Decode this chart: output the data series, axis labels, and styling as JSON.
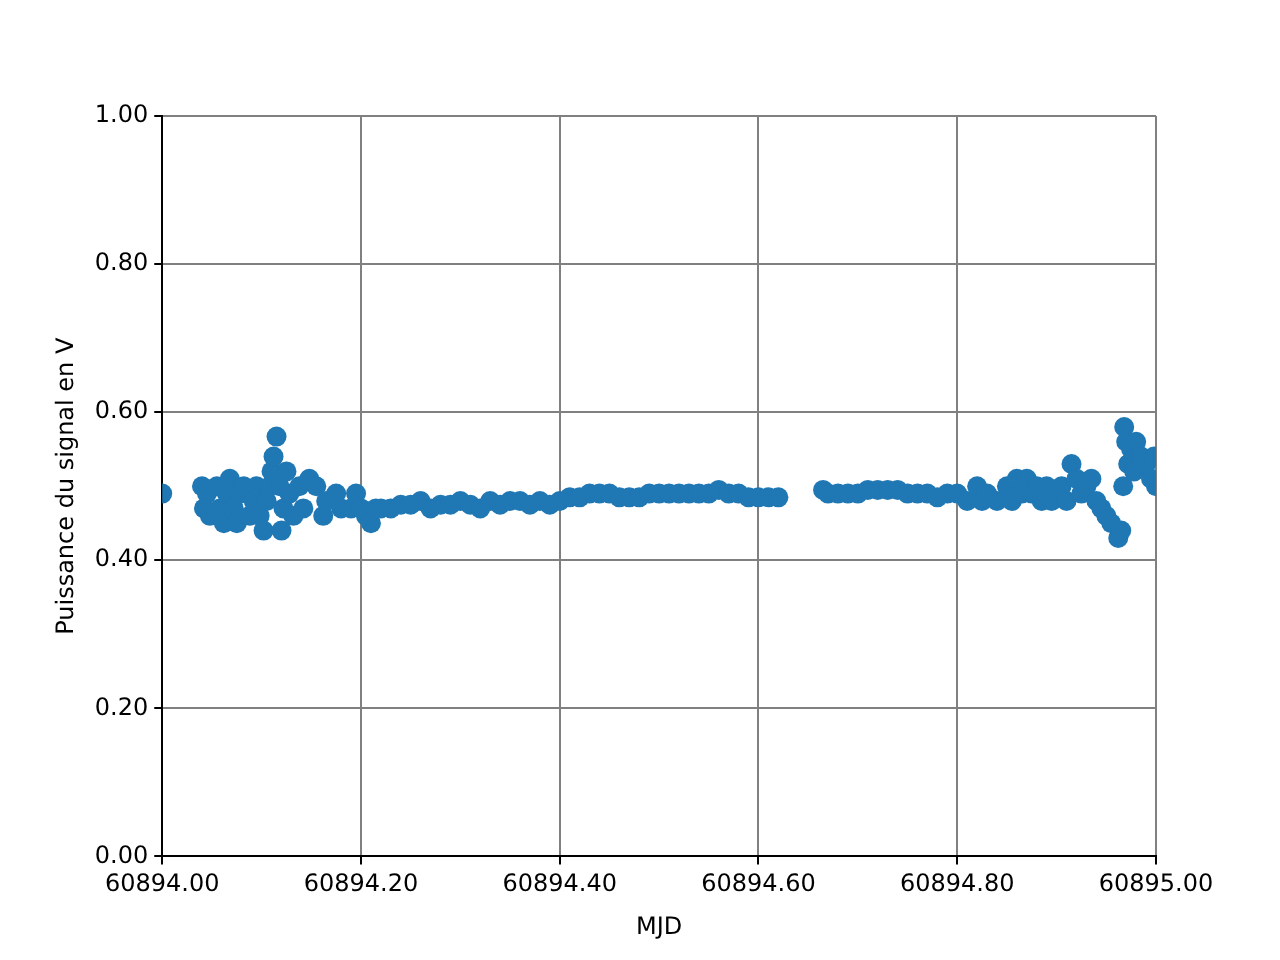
{
  "chart_data": {
    "type": "scatter",
    "xlabel": "MJD",
    "ylabel": "Puissance du signal en V",
    "marker": "circle",
    "grid": true,
    "xlim": [
      60894.0,
      60895.0
    ],
    "xticks": [
      {
        "value": 60894.0,
        "label": "60894.00"
      },
      {
        "value": 60894.2,
        "label": "60894.20"
      },
      {
        "value": 60894.4,
        "label": "60894.40"
      },
      {
        "value": 60894.6,
        "label": "60894.60"
      },
      {
        "value": 60894.8,
        "label": "60894.80"
      },
      {
        "value": 60895.0,
        "label": "60895.00"
      }
    ],
    "ylim": [
      0,
      1
    ],
    "yticks": [
      {
        "value": 0,
        "label": "0.00"
      },
      {
        "value": 0.2,
        "label": "0.20"
      },
      {
        "value": 0.4,
        "label": "0.40"
      },
      {
        "value": 0.6,
        "label": "0.60"
      },
      {
        "value": 0.8,
        "label": "0.80"
      },
      {
        "value": 1,
        "label": "1.00"
      }
    ],
    "series": [
      {
        "color": "#1f77b4",
        "x": [
          60894.0,
          60894.04,
          60894.042,
          60894.045,
          60894.048,
          60894.055,
          60894.058,
          60894.062,
          60894.065,
          60894.068,
          60894.072,
          60894.075,
          60894.078,
          60894.082,
          60894.088,
          60894.092,
          60894.095,
          60894.098,
          60894.102,
          60894.105,
          60894.108,
          60894.11,
          60894.112,
          60894.115,
          60894.118,
          60894.12,
          60894.122,
          60894.125,
          60894.128,
          60894.132,
          60894.138,
          60894.142,
          60894.148,
          60894.155,
          60894.162,
          60894.165,
          60894.175,
          60894.18,
          60894.19,
          60894.195,
          60894.2,
          60894.205,
          60894.21,
          60894.215,
          60894.22,
          60894.23,
          60894.24,
          60894.25,
          60894.26,
          60894.27,
          60894.28,
          60894.29,
          60894.3,
          60894.31,
          60894.32,
          60894.33,
          60894.34,
          60894.35,
          60894.36,
          60894.37,
          60894.38,
          60894.39,
          60894.4,
          60894.41,
          60894.42,
          60894.43,
          60894.44,
          60894.45,
          60894.46,
          60894.47,
          60894.48,
          60894.49,
          60894.5,
          60894.51,
          60894.52,
          60894.53,
          60894.54,
          60894.55,
          60894.56,
          60894.57,
          60894.58,
          60894.59,
          60894.6,
          60894.61,
          60894.62,
          60894.665,
          60894.67,
          60894.68,
          60894.69,
          60894.7,
          60894.71,
          60894.72,
          60894.73,
          60894.74,
          60894.75,
          60894.76,
          60894.77,
          60894.78,
          60894.79,
          60894.8,
          60894.81,
          60894.82,
          60894.825,
          60894.83,
          60894.84,
          60894.85,
          60894.855,
          60894.86,
          60894.865,
          60894.87,
          60894.875,
          60894.88,
          60894.885,
          60894.89,
          60894.895,
          60894.905,
          60894.91,
          60894.915,
          60894.92,
          60894.925,
          60894.93,
          60894.935,
          60894.94,
          60894.945,
          60894.95,
          60894.955,
          60894.962,
          60894.965,
          60894.967,
          60894.968,
          60894.97,
          60894.972,
          60894.975,
          60894.978,
          60894.98,
          60894.985,
          60894.99,
          60894.995,
          60894.998,
          60895.0
        ],
        "values": [
          0.49,
          0.5,
          0.47,
          0.49,
          0.46,
          0.5,
          0.47,
          0.45,
          0.49,
          0.51,
          0.47,
          0.45,
          0.49,
          0.5,
          0.46,
          0.48,
          0.5,
          0.46,
          0.44,
          0.48,
          0.5,
          0.52,
          0.54,
          0.567,
          0.5,
          0.44,
          0.47,
          0.52,
          0.49,
          0.46,
          0.5,
          0.47,
          0.51,
          0.5,
          0.46,
          0.48,
          0.49,
          0.47,
          0.47,
          0.49,
          0.47,
          0.46,
          0.45,
          0.47,
          0.47,
          0.47,
          0.475,
          0.475,
          0.48,
          0.47,
          0.475,
          0.475,
          0.48,
          0.475,
          0.47,
          0.48,
          0.475,
          0.48,
          0.48,
          0.475,
          0.48,
          0.475,
          0.48,
          0.485,
          0.485,
          0.49,
          0.49,
          0.49,
          0.485,
          0.485,
          0.485,
          0.49,
          0.49,
          0.49,
          0.49,
          0.49,
          0.49,
          0.49,
          0.495,
          0.49,
          0.49,
          0.485,
          0.485,
          0.485,
          0.485,
          0.495,
          0.49,
          0.49,
          0.49,
          0.49,
          0.495,
          0.495,
          0.495,
          0.495,
          0.49,
          0.49,
          0.49,
          0.485,
          0.49,
          0.49,
          0.48,
          0.5,
          0.48,
          0.49,
          0.48,
          0.5,
          0.48,
          0.51,
          0.49,
          0.51,
          0.49,
          0.5,
          0.48,
          0.5,
          0.48,
          0.5,
          0.48,
          0.53,
          0.51,
          0.49,
          0.5,
          0.51,
          0.48,
          0.47,
          0.46,
          0.45,
          0.43,
          0.44,
          0.5,
          0.58,
          0.56,
          0.53,
          0.55,
          0.52,
          0.56,
          0.54,
          0.53,
          0.51,
          0.54,
          0.5
        ]
      }
    ]
  }
}
